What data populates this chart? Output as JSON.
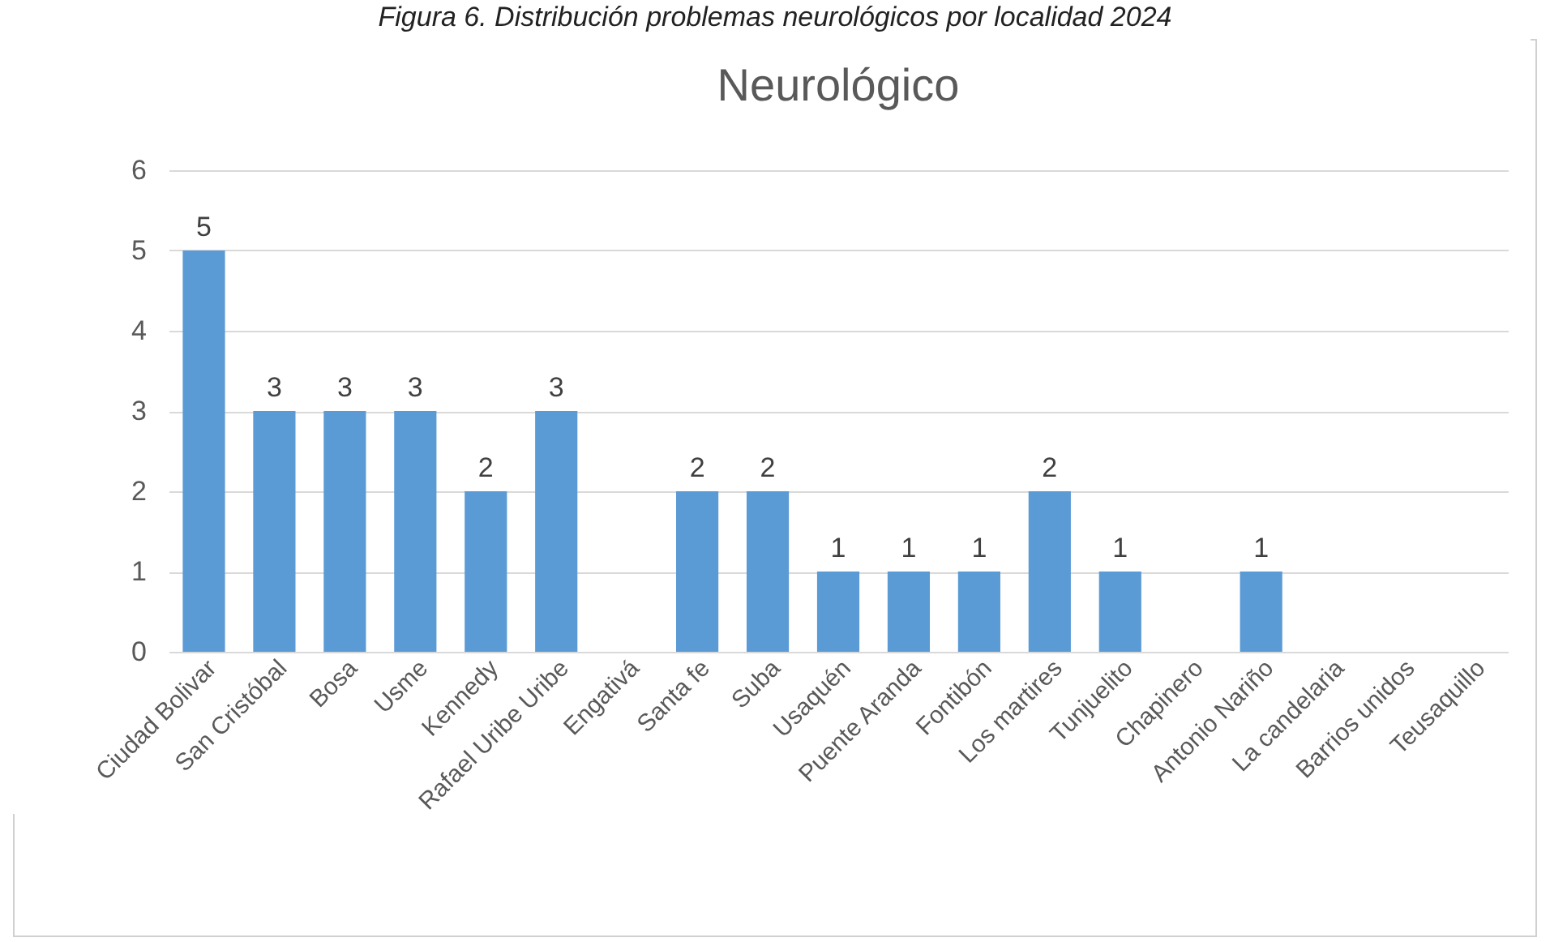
{
  "chart_data": {
    "type": "bar",
    "title": "Neurológico",
    "annotations": [
      "Figura 6. Distribución problemas neurológicos por localidad 2024"
    ],
    "categories": [
      "Ciudad Bolivar",
      "San Cristóbal",
      "Bosa",
      "Usme",
      "Kennedy",
      "Rafael Uribe Uribe",
      "Engativá",
      "Santa fe",
      "Suba",
      "Usaquén",
      "Puente Aranda",
      "Fontibón",
      "Los martires",
      "Tunjuelito",
      "Chapinero",
      "Antonio Nariño",
      "La candelaria",
      "Barrios unidos",
      "Teusaquillo"
    ],
    "values": [
      5,
      3,
      3,
      3,
      2,
      3,
      null,
      2,
      2,
      1,
      1,
      1,
      2,
      1,
      null,
      1,
      null,
      null,
      null
    ],
    "color": "#5b9bd5",
    "ylim": [
      0,
      6
    ],
    "yticks": [
      0,
      1,
      2,
      3,
      4,
      5,
      6
    ],
    "grid": "y",
    "data_labels": true
  }
}
